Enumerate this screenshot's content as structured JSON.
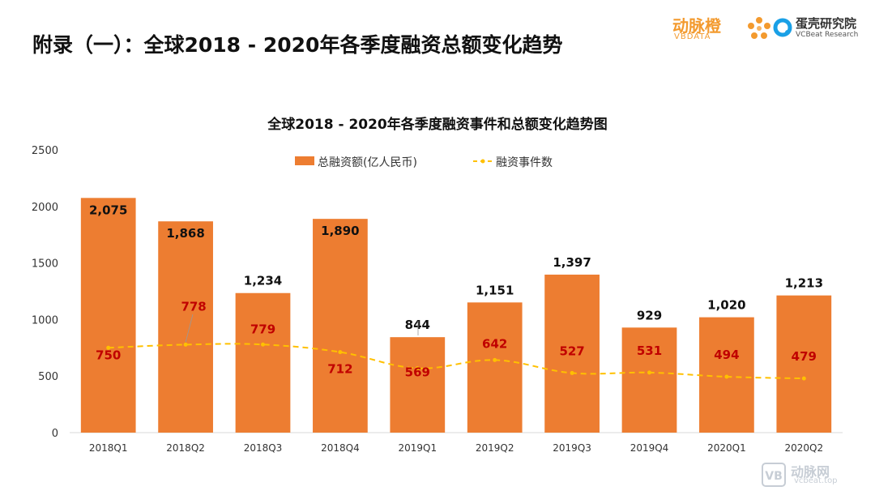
{
  "page": {
    "title": "附录（一）：全球2018 - 2020年各季度融资总额变化趋势"
  },
  "logos": {
    "vbdata_cn": "动脉橙",
    "vbdata_en": "VBDATA",
    "vcbeat_cn": "蛋壳研究院",
    "vcbeat_en": "VCBeat Research"
  },
  "watermark": {
    "cn": "动脉网",
    "en": "vcbeat.top"
  },
  "colors": {
    "bar": "#ED7D31",
    "line": "#FFC000",
    "bar_label": "#111111",
    "line_label": "#C00000",
    "axis": "#D9D9D9",
    "text": "#333333"
  },
  "chart_data": {
    "type": "bar",
    "title": "全球2018 - 2020年各季度融资事件和总额变化趋势图",
    "xlabel": "",
    "ylabel": "",
    "categories": [
      "2018Q1",
      "2018Q2",
      "2018Q3",
      "2018Q4",
      "2019Q1",
      "2019Q2",
      "2019Q3",
      "2019Q4",
      "2020Q1",
      "2020Q2"
    ],
    "ylim": [
      0,
      2500
    ],
    "yticks": [
      "0",
      "500",
      "1000",
      "1500",
      "2000",
      "2500"
    ],
    "grid": false,
    "legend": "top",
    "series": [
      {
        "name": "总融资额(亿人民币)",
        "type": "bar",
        "values": [
          2075,
          1868,
          1234,
          1890,
          844,
          1151,
          1397,
          929,
          1020,
          1213
        ],
        "labels": [
          "2,075",
          "1,868",
          "1,234",
          "1,890",
          "844",
          "1,151",
          "1,397",
          "929",
          "1,020",
          "1,213"
        ]
      },
      {
        "name": "融资事件数",
        "type": "line",
        "values": [
          750,
          778,
          779,
          712,
          569,
          642,
          527,
          531,
          494,
          479
        ],
        "labels": [
          "750",
          "778",
          "779",
          "712",
          "569",
          "642",
          "527",
          "531",
          "494",
          "479"
        ]
      }
    ]
  }
}
